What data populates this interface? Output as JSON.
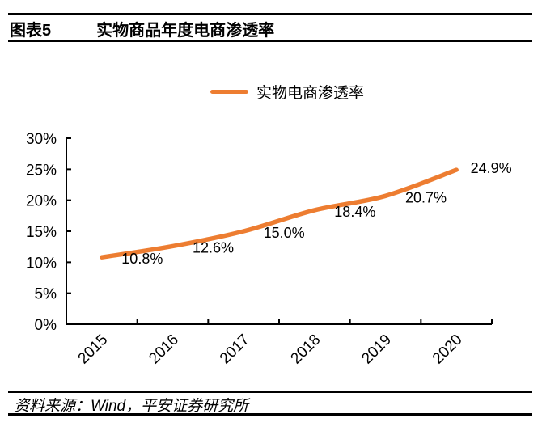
{
  "figure": {
    "label": "图表5",
    "title": "实物商品年度电商渗透率"
  },
  "legend": {
    "series_label": "实物电商渗透率"
  },
  "source": {
    "text": "资料来源：Wind，平安证券研究所"
  },
  "colors": {
    "series": "#ED7D31",
    "axis": "#000000",
    "label_text": "#000000"
  },
  "chart_data": {
    "type": "line",
    "title": "实物商品年度电商渗透率",
    "categories": [
      "2015",
      "2016",
      "2017",
      "2018",
      "2019",
      "2020"
    ],
    "series": [
      {
        "name": "实物电商渗透率",
        "values": [
          10.8,
          12.6,
          15.0,
          18.4,
          20.7,
          24.9
        ]
      }
    ],
    "point_labels": [
      "10.8%",
      "12.6%",
      "15.0%",
      "18.4%",
      "20.7%",
      "24.9%"
    ],
    "xlabel": "",
    "ylabel": "",
    "ylim": [
      0,
      30
    ],
    "ytick_step": 5,
    "ytick_labels": [
      "0%",
      "5%",
      "10%",
      "15%",
      "20%",
      "25%",
      "30%"
    ],
    "grid": false,
    "legend_position": "top",
    "smooth": true
  }
}
